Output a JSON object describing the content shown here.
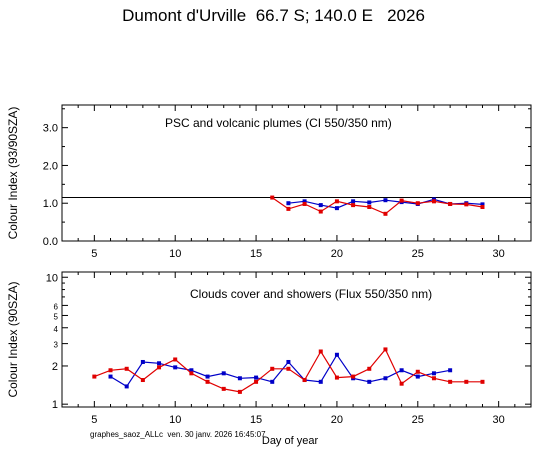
{
  "header": {
    "title": "Dumont d'Urville  66.7 S; 140.0 E   2026"
  },
  "footer": {
    "text": "graphes_saoz_ALLc  ven. 30 janv. 2026 16:45:07"
  },
  "colors": {
    "blue": "#0000c8",
    "red": "#e00000",
    "axis": "#000000"
  },
  "chart_data": [
    {
      "type": "line",
      "annotation": "PSC and volcanic plumes (CI 550/350 nm)",
      "ylabel": "Colour Index (93/90SZA)",
      "xlabel": "",
      "xlim": [
        3,
        32
      ],
      "ylim": [
        0,
        3.6
      ],
      "yscale": "linear",
      "xticks": [
        5,
        10,
        15,
        20,
        25,
        30
      ],
      "yticks": [
        0,
        1,
        2,
        3
      ],
      "ytick_labels": [
        "0.0",
        "1.0",
        "2.0",
        "3.0"
      ],
      "reference_line": 1.15,
      "series": [
        {
          "color": "blue",
          "x": [
            17,
            18,
            19,
            20,
            21,
            22,
            23,
            24,
            25,
            26,
            27,
            28,
            29
          ],
          "y": [
            1.0,
            1.05,
            0.95,
            0.87,
            1.05,
            1.02,
            1.08,
            1.03,
            0.98,
            1.1,
            0.98,
            1.0,
            0.97
          ]
        },
        {
          "color": "red",
          "x": [
            16,
            17,
            18,
            19,
            20,
            21,
            22,
            23,
            24,
            25,
            26,
            27,
            28,
            29
          ],
          "y": [
            1.15,
            0.85,
            0.98,
            0.78,
            1.05,
            0.95,
            0.9,
            0.72,
            1.07,
            1.0,
            1.05,
            0.98,
            0.97,
            0.9
          ]
        }
      ]
    },
    {
      "type": "line",
      "annotation": "Clouds cover and showers (Flux 550/350 nm)",
      "ylabel": "Colour Index (90SZA)",
      "xlabel": "Day of year",
      "xlim": [
        3,
        32
      ],
      "ylim": [
        0.95,
        11
      ],
      "yscale": "log",
      "xticks": [
        5,
        10,
        15,
        20,
        25,
        30
      ],
      "yticks": [
        1,
        2,
        3,
        4,
        5,
        6,
        10
      ],
      "ytick_labels": [
        "1",
        "2",
        "3",
        "4",
        "5",
        "6",
        "10"
      ],
      "series": [
        {
          "color": "blue",
          "x": [
            6,
            7,
            8,
            9,
            10,
            11,
            12,
            13,
            14,
            15,
            16,
            17,
            18,
            19,
            20,
            21,
            22,
            23,
            24,
            25,
            26,
            27
          ],
          "y": [
            1.65,
            1.38,
            2.15,
            2.1,
            1.95,
            1.85,
            1.65,
            1.75,
            1.6,
            1.62,
            1.5,
            2.15,
            1.55,
            1.5,
            2.45,
            1.6,
            1.5,
            1.6,
            1.85,
            1.65,
            1.75,
            1.85
          ]
        },
        {
          "color": "red",
          "x": [
            5,
            6,
            7,
            8,
            9,
            10,
            11,
            12,
            13,
            14,
            15,
            16,
            17,
            18,
            19,
            20,
            21,
            22,
            23,
            24,
            25,
            26,
            27,
            28,
            29
          ],
          "y": [
            1.65,
            1.85,
            1.9,
            1.55,
            1.95,
            2.25,
            1.75,
            1.5,
            1.32,
            1.25,
            1.5,
            1.9,
            1.9,
            1.55,
            2.6,
            1.62,
            1.65,
            1.9,
            2.7,
            1.45,
            1.8,
            1.6,
            1.5,
            1.5,
            1.5
          ]
        }
      ]
    }
  ]
}
